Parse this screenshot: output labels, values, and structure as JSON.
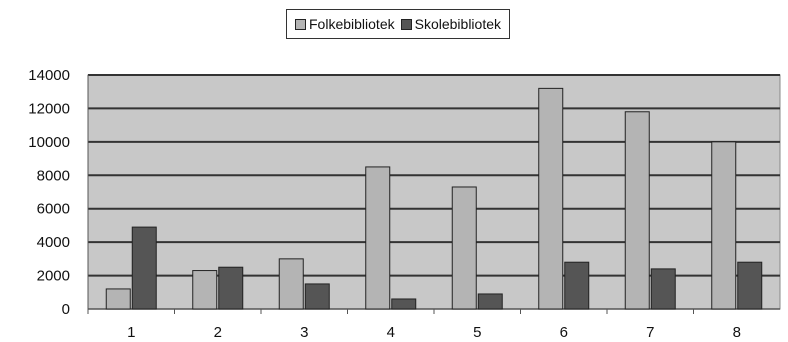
{
  "colors": {
    "plot_background": "#c8c8c8",
    "gridline": "#333333",
    "series_1": "#b4b4b4",
    "series_2": "#555555",
    "bar_stroke": "#222222"
  },
  "legend": {
    "position": "top-center"
  },
  "chart_data": {
    "type": "bar",
    "title": "",
    "xlabel": "",
    "ylabel": "",
    "categories": [
      "1",
      "2",
      "3",
      "4",
      "5",
      "6",
      "7",
      "8"
    ],
    "series": [
      {
        "name": "Folkebibliotek",
        "values": [
          1200,
          2300,
          3000,
          8500,
          7300,
          13200,
          11800,
          10000
        ]
      },
      {
        "name": "Skolebibliotek",
        "values": [
          4900,
          2500,
          1500,
          600,
          900,
          2800,
          2400,
          2800
        ]
      }
    ],
    "ylim": [
      0,
      14000
    ],
    "yticks": [
      0,
      2000,
      4000,
      6000,
      8000,
      10000,
      12000,
      14000
    ],
    "grid": true
  }
}
